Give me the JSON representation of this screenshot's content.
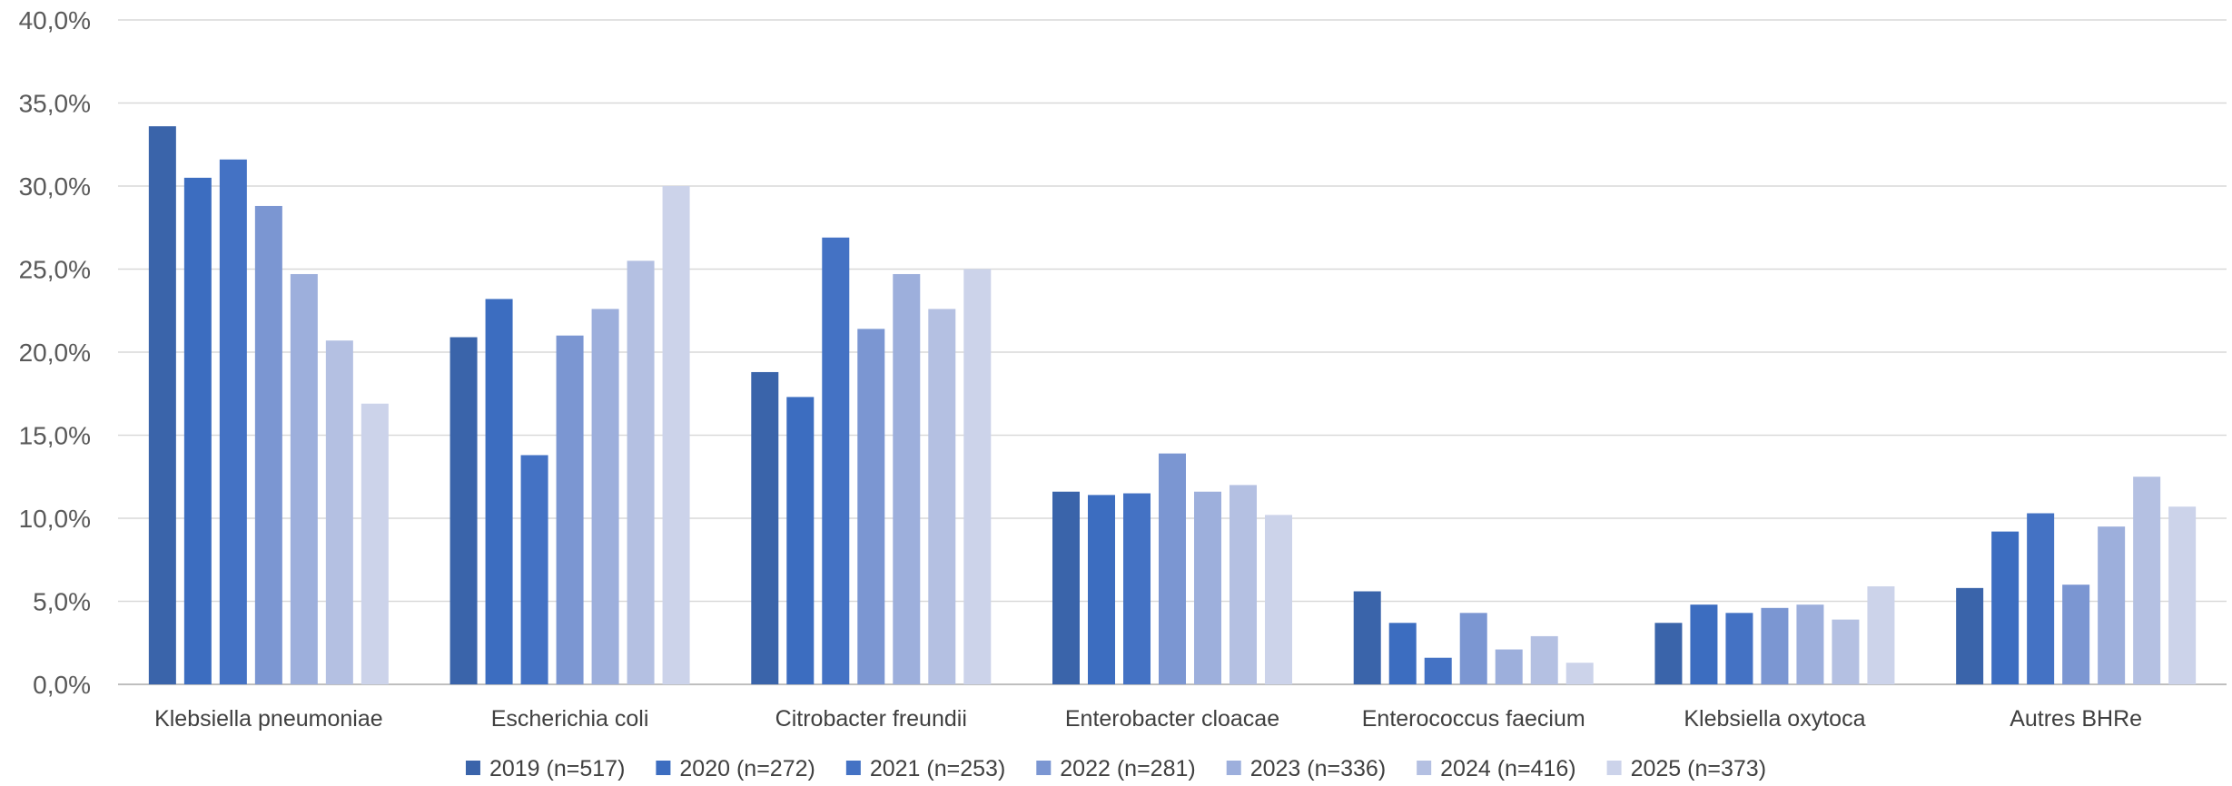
{
  "chart_data": {
    "type": "bar",
    "title": "",
    "xlabel": "",
    "ylabel": "",
    "ylim": [
      0,
      40
    ],
    "y_ticks": [
      "0,0%",
      "5,0%",
      "10,0%",
      "15,0%",
      "20,0%",
      "25,0%",
      "30,0%",
      "35,0%",
      "40,0%"
    ],
    "y_tick_values": [
      0,
      5,
      10,
      15,
      20,
      25,
      30,
      35,
      40
    ],
    "grid": "horizontal",
    "legend_position": "bottom",
    "categories": [
      "Klebsiella pneumoniae",
      "Escherichia coli",
      "Citrobacter freundii",
      "Enterobacter cloacae",
      "Enterococcus faecium",
      "Klebsiella oxytoca",
      "Autres BHRe"
    ],
    "series": [
      {
        "name": "2019 (n=517)",
        "color": "#3A64AA",
        "values": [
          33.6,
          20.9,
          18.8,
          11.6,
          5.6,
          3.7,
          5.8
        ]
      },
      {
        "name": "2020 (n=272)",
        "color": "#3C6DC0",
        "values": [
          30.5,
          23.2,
          17.3,
          11.4,
          3.7,
          4.8,
          9.2
        ]
      },
      {
        "name": "2021 (n=253)",
        "color": "#4472C4",
        "values": [
          31.6,
          13.8,
          26.9,
          11.5,
          1.6,
          4.3,
          10.3
        ]
      },
      {
        "name": "2022 (n=281)",
        "color": "#7B96D2",
        "values": [
          28.8,
          21.0,
          21.4,
          13.9,
          4.3,
          4.6,
          6.0
        ]
      },
      {
        "name": "2023 (n=336)",
        "color": "#9DAFDC",
        "values": [
          24.7,
          22.6,
          24.7,
          11.6,
          2.1,
          4.8,
          9.5
        ]
      },
      {
        "name": "2024 (n=416)",
        "color": "#B4C0E2",
        "values": [
          20.7,
          25.5,
          22.6,
          12.0,
          2.9,
          3.9,
          12.5
        ]
      },
      {
        "name": "2025 (n=373)",
        "color": "#CCD3EA",
        "values": [
          16.9,
          30.0,
          25.0,
          10.2,
          1.3,
          5.9,
          10.7
        ]
      }
    ]
  }
}
